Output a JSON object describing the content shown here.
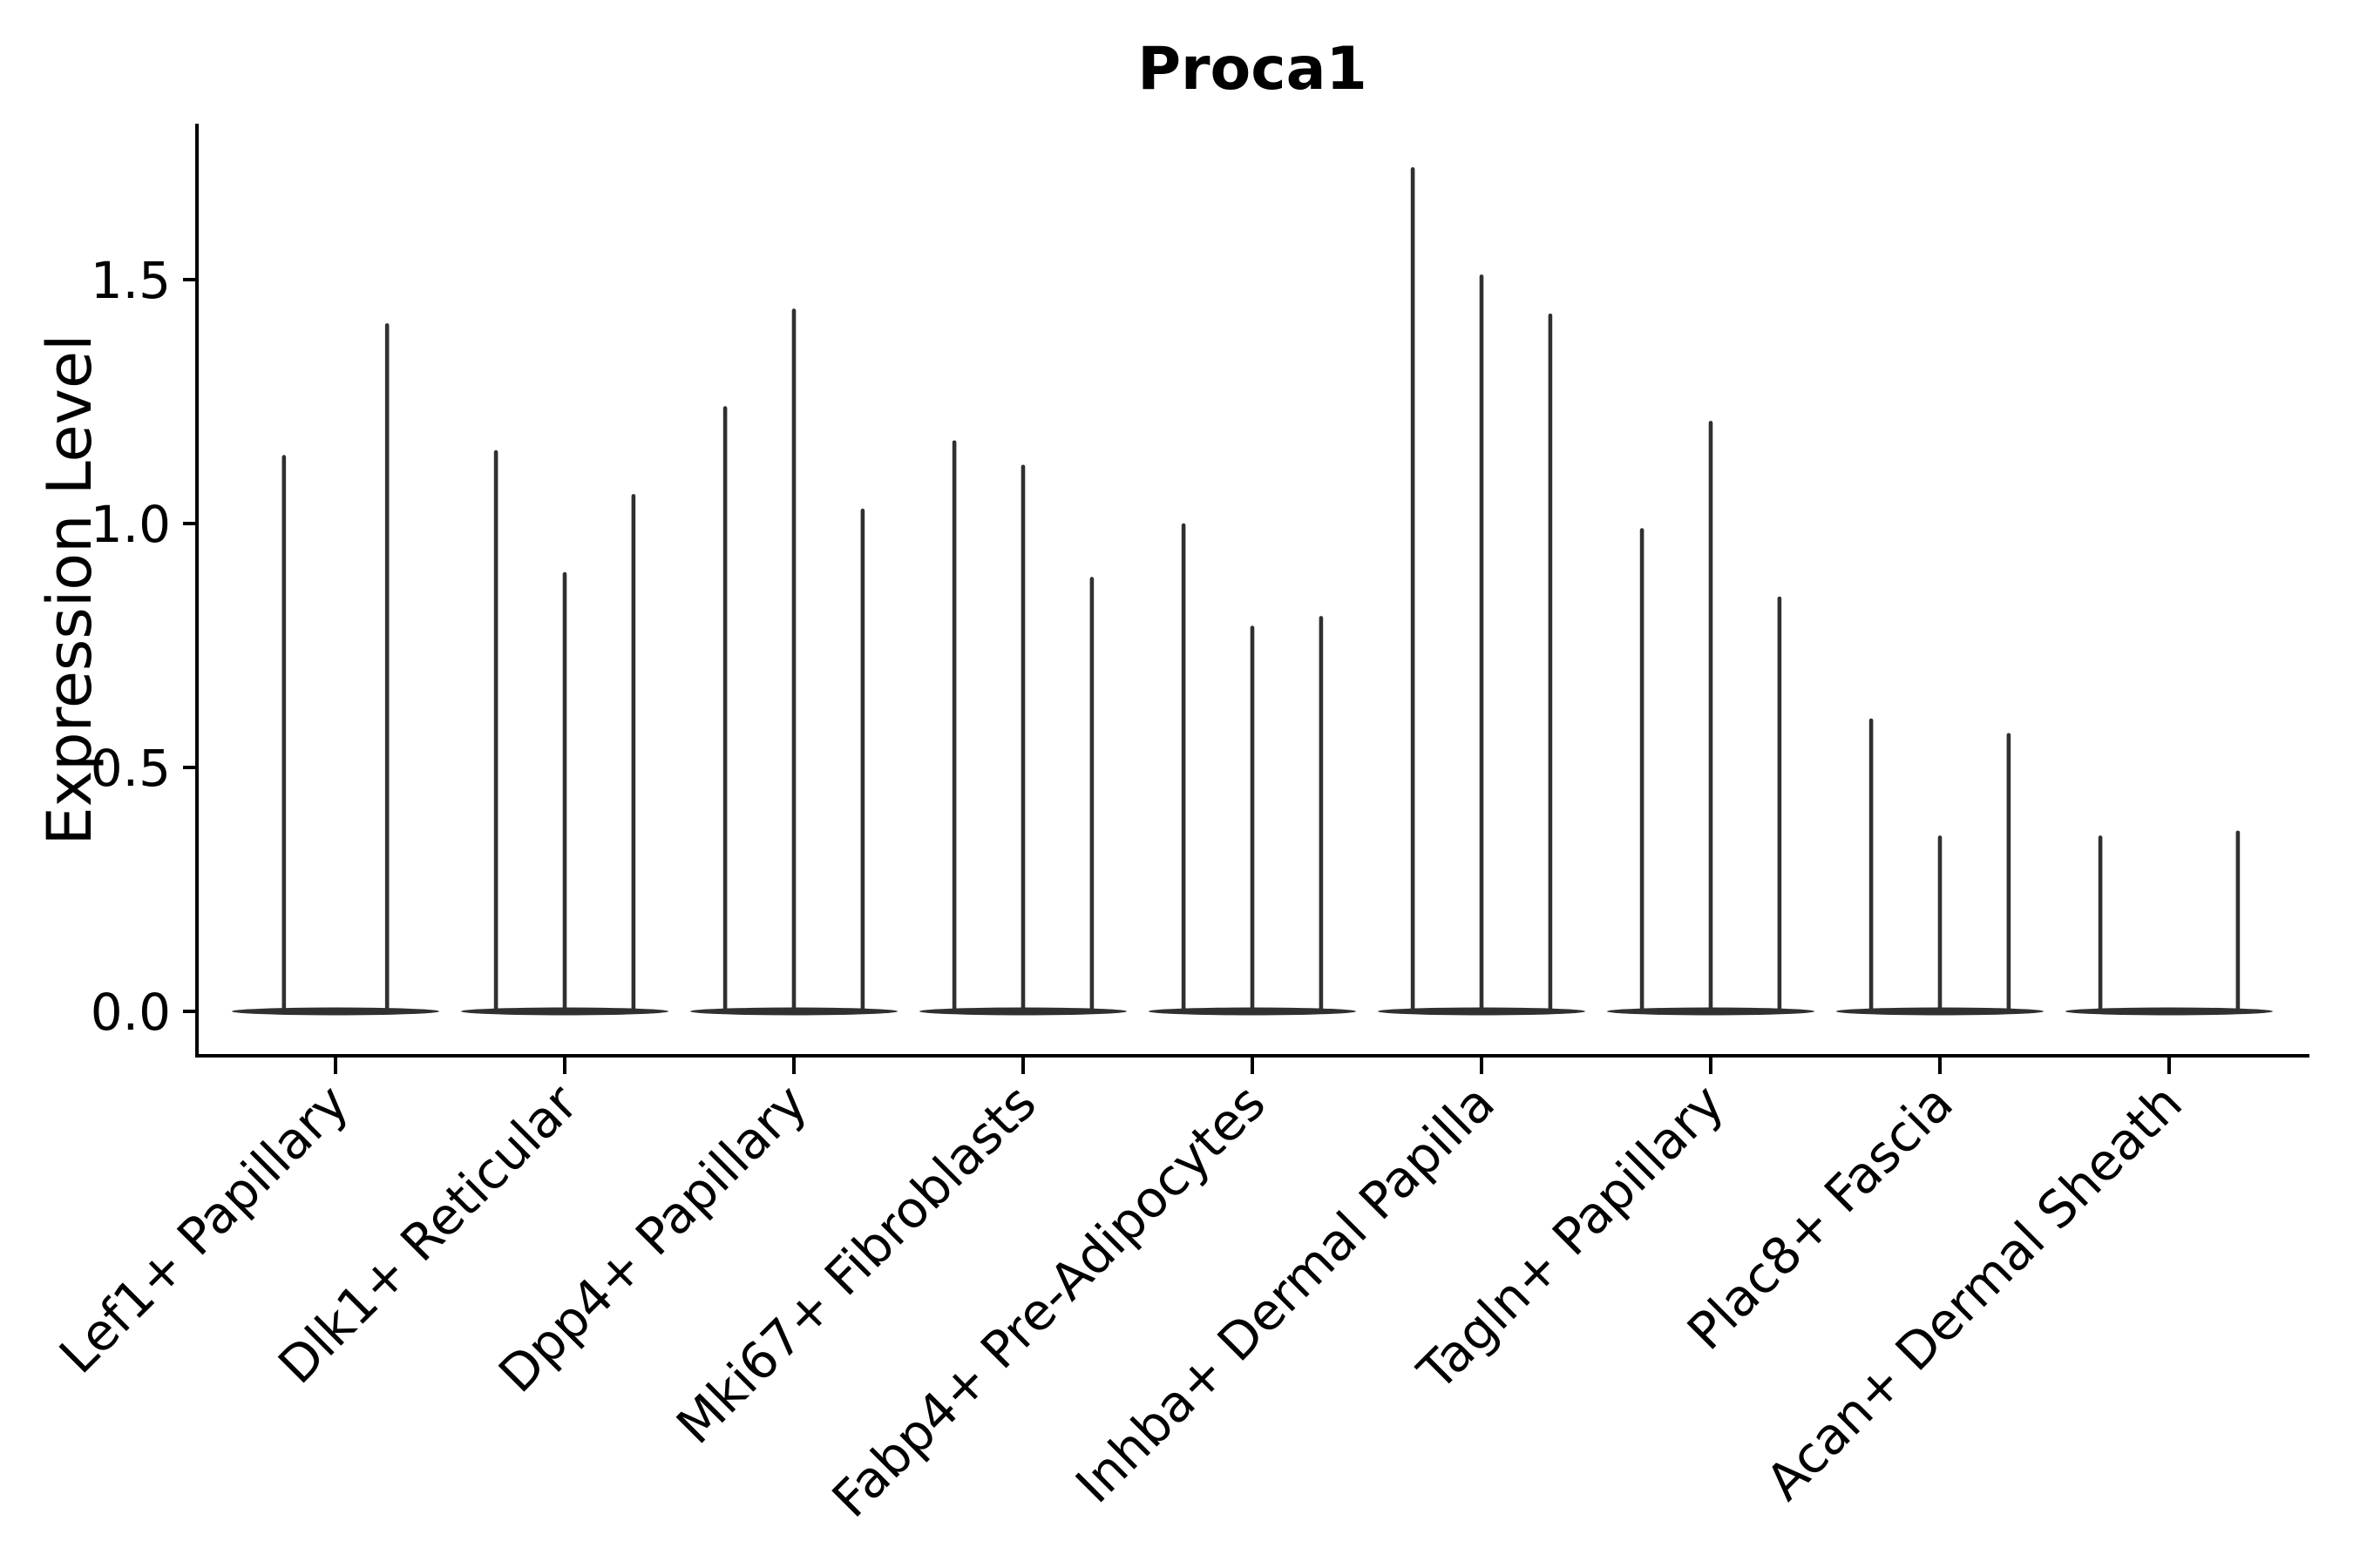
{
  "page": {
    "background": "#ffffff"
  },
  "chart_data": {
    "type": "violin",
    "title": "Proca1",
    "ylabel": "Expression Level",
    "xlabel": "",
    "ylim": [
      -0.09,
      1.82
    ],
    "yticks": [
      {
        "value": 0.0,
        "label": "0.0"
      },
      {
        "value": 0.5,
        "label": "0.5"
      },
      {
        "value": 1.0,
        "label": "1.0"
      },
      {
        "value": 1.5,
        "label": "1.5"
      }
    ],
    "grid": false,
    "legend": "none",
    "violin_color": "#303030",
    "axis_color": "#000000",
    "categories": [
      "Lef1+ Papillary",
      "Dlk1+ Reticular",
      "Dpp4+ Papillary",
      "Mki67+ Fibroblasts",
      "Fabp4+ Pre-Adipocytes",
      "Inhba+ Dermal Papilla",
      "Tagln+ Papillary",
      "Plac8+ Fascia",
      "Acan+ Dermal Sheath"
    ],
    "groups": [
      {
        "category": "Lef1+ Papillary",
        "violins": [
          {
            "dx": -0.225,
            "peak": 1.14
          },
          {
            "dx": 0.225,
            "peak": 1.41
          }
        ]
      },
      {
        "category": "Dlk1+ Reticular",
        "violins": [
          {
            "dx": -0.3,
            "peak": 1.15
          },
          {
            "dx": 0.0,
            "peak": 0.9
          },
          {
            "dx": 0.3,
            "peak": 1.06
          }
        ]
      },
      {
        "category": "Dpp4+ Papillary",
        "violins": [
          {
            "dx": -0.3,
            "peak": 1.24
          },
          {
            "dx": 0.0,
            "peak": 1.44
          },
          {
            "dx": 0.3,
            "peak": 1.03
          }
        ]
      },
      {
        "category": "Mki67+ Fibroblasts",
        "violins": [
          {
            "dx": -0.3,
            "peak": 1.17
          },
          {
            "dx": 0.0,
            "peak": 1.12
          },
          {
            "dx": 0.3,
            "peak": 0.89
          }
        ]
      },
      {
        "category": "Fabp4+ Pre-Adipocytes",
        "violins": [
          {
            "dx": -0.3,
            "peak": 1.0
          },
          {
            "dx": 0.0,
            "peak": 0.79
          },
          {
            "dx": 0.3,
            "peak": 0.81
          }
        ]
      },
      {
        "category": "Inhba+ Dermal Papilla",
        "violins": [
          {
            "dx": -0.3,
            "peak": 1.73
          },
          {
            "dx": 0.0,
            "peak": 1.51
          },
          {
            "dx": 0.3,
            "peak": 1.43
          }
        ]
      },
      {
        "category": "Tagln+ Papillary",
        "violins": [
          {
            "dx": -0.3,
            "peak": 0.99
          },
          {
            "dx": 0.0,
            "peak": 1.21
          },
          {
            "dx": 0.3,
            "peak": 0.85
          }
        ]
      },
      {
        "category": "Plac8+ Fascia",
        "violins": [
          {
            "dx": -0.3,
            "peak": 0.6
          },
          {
            "dx": 0.0,
            "peak": 0.36
          },
          {
            "dx": 0.3,
            "peak": 0.57
          }
        ]
      },
      {
        "category": "Acan+ Dermal Sheath",
        "violins": [
          {
            "dx": -0.3,
            "peak": 0.36
          },
          {
            "dx": 0.3,
            "peak": 0.37
          }
        ]
      }
    ]
  }
}
